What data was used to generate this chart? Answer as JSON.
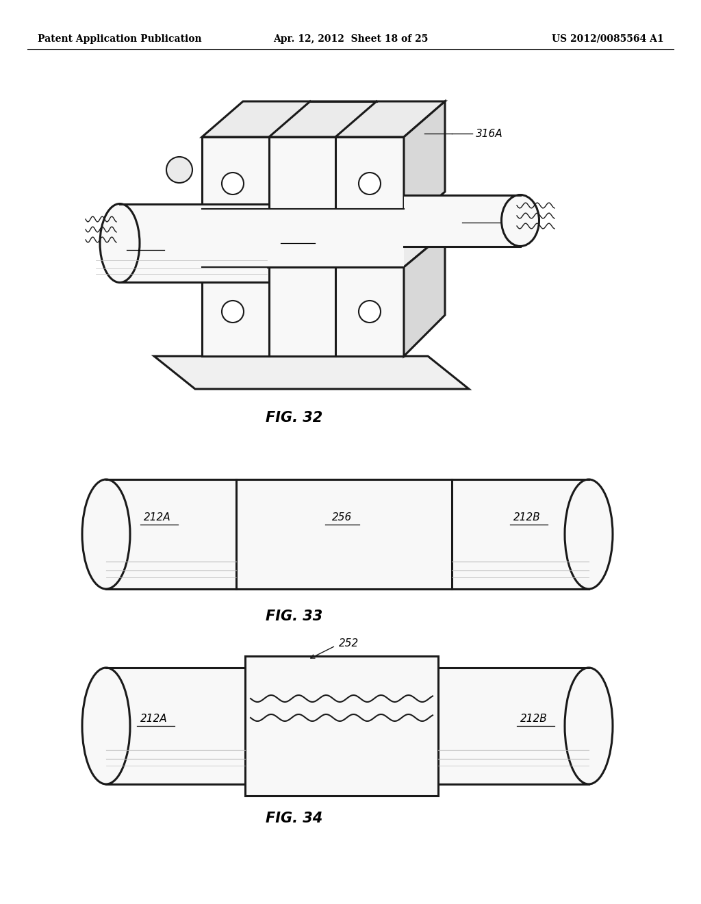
{
  "background_color": "#ffffff",
  "header_left": "Patent Application Publication",
  "header_center": "Apr. 12, 2012  Sheet 18 of 25",
  "header_right": "US 2012/0085564 A1",
  "fig32_caption": "FIG. 32",
  "fig33_caption": "FIG. 33",
  "fig34_caption": "FIG. 34",
  "label_212A": "212A",
  "label_212B": "212B",
  "label_256": "256",
  "label_316A": "316A",
  "label_252": "252"
}
